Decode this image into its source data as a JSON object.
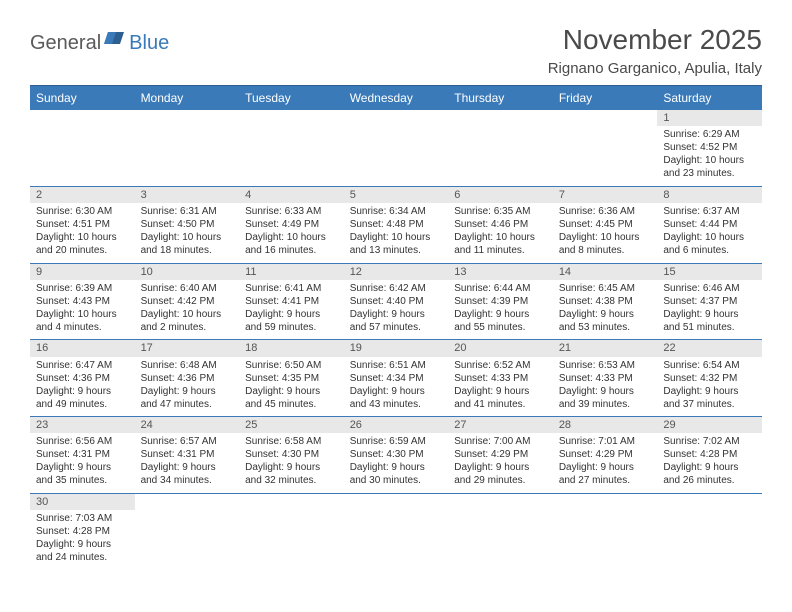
{
  "logo": {
    "part1": "General",
    "part2": "Blue"
  },
  "title": "November 2025",
  "location": "Rignano Garganico, Apulia, Italy",
  "colors": {
    "header_bg": "#3a7ab8",
    "header_text": "#ffffff",
    "daynum_bg": "#e8e8e8",
    "border": "#3a7ab8",
    "text": "#333333",
    "logo_gray": "#5a5a5a",
    "logo_blue": "#3a7ab8"
  },
  "weekdays": [
    "Sunday",
    "Monday",
    "Tuesday",
    "Wednesday",
    "Thursday",
    "Friday",
    "Saturday"
  ],
  "weeks": [
    [
      null,
      null,
      null,
      null,
      null,
      null,
      {
        "n": "1",
        "sr": "Sunrise: 6:29 AM",
        "ss": "Sunset: 4:52 PM",
        "dl1": "Daylight: 10 hours",
        "dl2": "and 23 minutes."
      }
    ],
    [
      {
        "n": "2",
        "sr": "Sunrise: 6:30 AM",
        "ss": "Sunset: 4:51 PM",
        "dl1": "Daylight: 10 hours",
        "dl2": "and 20 minutes."
      },
      {
        "n": "3",
        "sr": "Sunrise: 6:31 AM",
        "ss": "Sunset: 4:50 PM",
        "dl1": "Daylight: 10 hours",
        "dl2": "and 18 minutes."
      },
      {
        "n": "4",
        "sr": "Sunrise: 6:33 AM",
        "ss": "Sunset: 4:49 PM",
        "dl1": "Daylight: 10 hours",
        "dl2": "and 16 minutes."
      },
      {
        "n": "5",
        "sr": "Sunrise: 6:34 AM",
        "ss": "Sunset: 4:48 PM",
        "dl1": "Daylight: 10 hours",
        "dl2": "and 13 minutes."
      },
      {
        "n": "6",
        "sr": "Sunrise: 6:35 AM",
        "ss": "Sunset: 4:46 PM",
        "dl1": "Daylight: 10 hours",
        "dl2": "and 11 minutes."
      },
      {
        "n": "7",
        "sr": "Sunrise: 6:36 AM",
        "ss": "Sunset: 4:45 PM",
        "dl1": "Daylight: 10 hours",
        "dl2": "and 8 minutes."
      },
      {
        "n": "8",
        "sr": "Sunrise: 6:37 AM",
        "ss": "Sunset: 4:44 PM",
        "dl1": "Daylight: 10 hours",
        "dl2": "and 6 minutes."
      }
    ],
    [
      {
        "n": "9",
        "sr": "Sunrise: 6:39 AM",
        "ss": "Sunset: 4:43 PM",
        "dl1": "Daylight: 10 hours",
        "dl2": "and 4 minutes."
      },
      {
        "n": "10",
        "sr": "Sunrise: 6:40 AM",
        "ss": "Sunset: 4:42 PM",
        "dl1": "Daylight: 10 hours",
        "dl2": "and 2 minutes."
      },
      {
        "n": "11",
        "sr": "Sunrise: 6:41 AM",
        "ss": "Sunset: 4:41 PM",
        "dl1": "Daylight: 9 hours",
        "dl2": "and 59 minutes."
      },
      {
        "n": "12",
        "sr": "Sunrise: 6:42 AM",
        "ss": "Sunset: 4:40 PM",
        "dl1": "Daylight: 9 hours",
        "dl2": "and 57 minutes."
      },
      {
        "n": "13",
        "sr": "Sunrise: 6:44 AM",
        "ss": "Sunset: 4:39 PM",
        "dl1": "Daylight: 9 hours",
        "dl2": "and 55 minutes."
      },
      {
        "n": "14",
        "sr": "Sunrise: 6:45 AM",
        "ss": "Sunset: 4:38 PM",
        "dl1": "Daylight: 9 hours",
        "dl2": "and 53 minutes."
      },
      {
        "n": "15",
        "sr": "Sunrise: 6:46 AM",
        "ss": "Sunset: 4:37 PM",
        "dl1": "Daylight: 9 hours",
        "dl2": "and 51 minutes."
      }
    ],
    [
      {
        "n": "16",
        "sr": "Sunrise: 6:47 AM",
        "ss": "Sunset: 4:36 PM",
        "dl1": "Daylight: 9 hours",
        "dl2": "and 49 minutes."
      },
      {
        "n": "17",
        "sr": "Sunrise: 6:48 AM",
        "ss": "Sunset: 4:36 PM",
        "dl1": "Daylight: 9 hours",
        "dl2": "and 47 minutes."
      },
      {
        "n": "18",
        "sr": "Sunrise: 6:50 AM",
        "ss": "Sunset: 4:35 PM",
        "dl1": "Daylight: 9 hours",
        "dl2": "and 45 minutes."
      },
      {
        "n": "19",
        "sr": "Sunrise: 6:51 AM",
        "ss": "Sunset: 4:34 PM",
        "dl1": "Daylight: 9 hours",
        "dl2": "and 43 minutes."
      },
      {
        "n": "20",
        "sr": "Sunrise: 6:52 AM",
        "ss": "Sunset: 4:33 PM",
        "dl1": "Daylight: 9 hours",
        "dl2": "and 41 minutes."
      },
      {
        "n": "21",
        "sr": "Sunrise: 6:53 AM",
        "ss": "Sunset: 4:33 PM",
        "dl1": "Daylight: 9 hours",
        "dl2": "and 39 minutes."
      },
      {
        "n": "22",
        "sr": "Sunrise: 6:54 AM",
        "ss": "Sunset: 4:32 PM",
        "dl1": "Daylight: 9 hours",
        "dl2": "and 37 minutes."
      }
    ],
    [
      {
        "n": "23",
        "sr": "Sunrise: 6:56 AM",
        "ss": "Sunset: 4:31 PM",
        "dl1": "Daylight: 9 hours",
        "dl2": "and 35 minutes."
      },
      {
        "n": "24",
        "sr": "Sunrise: 6:57 AM",
        "ss": "Sunset: 4:31 PM",
        "dl1": "Daylight: 9 hours",
        "dl2": "and 34 minutes."
      },
      {
        "n": "25",
        "sr": "Sunrise: 6:58 AM",
        "ss": "Sunset: 4:30 PM",
        "dl1": "Daylight: 9 hours",
        "dl2": "and 32 minutes."
      },
      {
        "n": "26",
        "sr": "Sunrise: 6:59 AM",
        "ss": "Sunset: 4:30 PM",
        "dl1": "Daylight: 9 hours",
        "dl2": "and 30 minutes."
      },
      {
        "n": "27",
        "sr": "Sunrise: 7:00 AM",
        "ss": "Sunset: 4:29 PM",
        "dl1": "Daylight: 9 hours",
        "dl2": "and 29 minutes."
      },
      {
        "n": "28",
        "sr": "Sunrise: 7:01 AM",
        "ss": "Sunset: 4:29 PM",
        "dl1": "Daylight: 9 hours",
        "dl2": "and 27 minutes."
      },
      {
        "n": "29",
        "sr": "Sunrise: 7:02 AM",
        "ss": "Sunset: 4:28 PM",
        "dl1": "Daylight: 9 hours",
        "dl2": "and 26 minutes."
      }
    ],
    [
      {
        "n": "30",
        "sr": "Sunrise: 7:03 AM",
        "ss": "Sunset: 4:28 PM",
        "dl1": "Daylight: 9 hours",
        "dl2": "and 24 minutes."
      },
      null,
      null,
      null,
      null,
      null,
      null
    ]
  ]
}
